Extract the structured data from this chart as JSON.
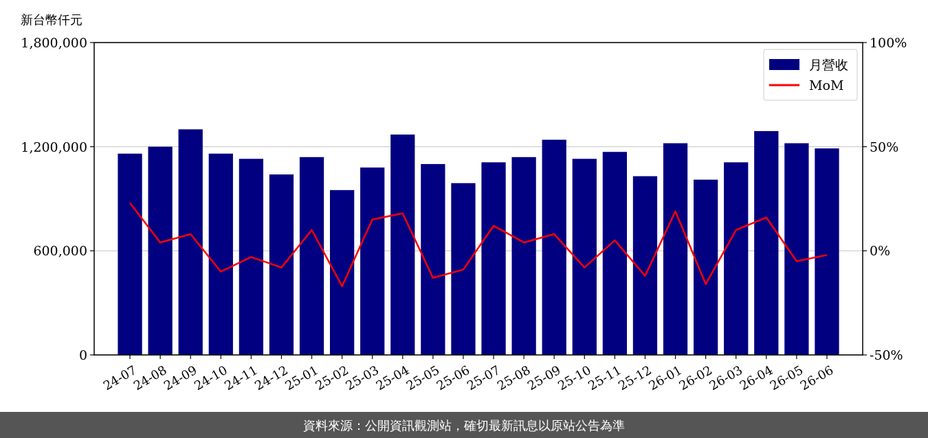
{
  "chart_data": {
    "type": "bar",
    "ylabel": "新台幣仟元",
    "categories": [
      "24-07",
      "24-08",
      "24-09",
      "24-10",
      "24-11",
      "24-12",
      "25-01",
      "25-02",
      "25-03",
      "25-04",
      "25-05",
      "25-06",
      "25-07",
      "25-08",
      "25-09",
      "25-10",
      "25-11",
      "25-12",
      "26-01",
      "26-02",
      "26-03",
      "26-04",
      "26-05",
      "26-06"
    ],
    "series": [
      {
        "name": "月營收",
        "color": "#000080",
        "values": [
          1160000,
          1200000,
          1300000,
          1160000,
          1130000,
          1040000,
          1140000,
          950000,
          1080000,
          1270000,
          1100000,
          990000,
          1110000,
          1140000,
          1240000,
          1130000,
          1170000,
          1030000,
          1220000,
          1010000,
          1110000,
          1290000,
          1220000,
          1190000
        ]
      },
      {
        "name": "MoM",
        "type": "line",
        "axis": "y2",
        "color": "#ff0000",
        "values": [
          23,
          4,
          8,
          -10,
          -3,
          -8,
          10,
          -17,
          15,
          18,
          -13,
          -9,
          12,
          4,
          8,
          -8,
          5,
          -12,
          19,
          -16,
          10,
          16,
          -5,
          -2
        ]
      }
    ],
    "ylim": [
      0,
      1800000
    ],
    "yticks": [
      {
        "value": 0,
        "label": "0"
      },
      {
        "value": 600000,
        "label": "600,000"
      },
      {
        "value": 1200000,
        "label": "1,200,000"
      },
      {
        "value": 1800000,
        "label": "1,800,000"
      }
    ],
    "y2lim": [
      -50,
      100
    ],
    "y2ticks": [
      {
        "value": -50,
        "label": "-50%"
      },
      {
        "value": 0,
        "label": "0%"
      },
      {
        "value": 50,
        "label": "50%"
      },
      {
        "value": 100,
        "label": "100%"
      }
    ],
    "grid": "y",
    "legend": "top right",
    "annotations": [
      "資料來源：公開資訊觀測站，確切最新訊息以原站公告為準"
    ]
  }
}
